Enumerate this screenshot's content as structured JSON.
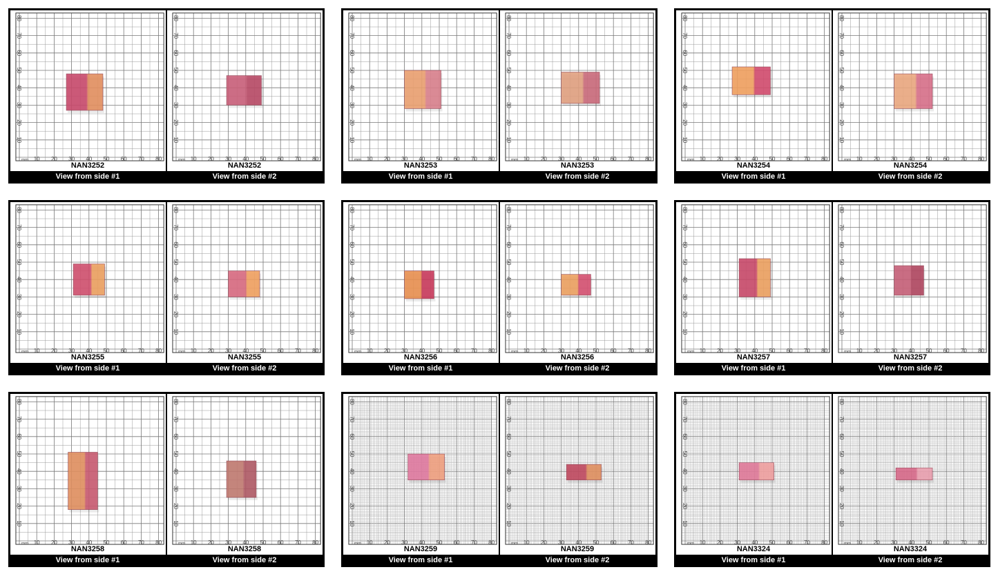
{
  "cards": [
    {
      "panels": [
        {
          "label": "NAN3252",
          "caption": "View from side #1"
        },
        {
          "label": "NAN3252",
          "caption": "View from side #2"
        }
      ]
    },
    {
      "panels": [
        {
          "label": "NAN3253",
          "caption": "View from side #1"
        },
        {
          "label": "NAN3253",
          "caption": "View from side #2"
        }
      ]
    },
    {
      "panels": [
        {
          "label": "NAN3254",
          "caption": "View from side #1"
        },
        {
          "label": "NAN3254",
          "caption": "View from side #2"
        }
      ]
    },
    {
      "panels": [
        {
          "label": "NAN3255",
          "caption": "View from side #1"
        },
        {
          "label": "NAN3255",
          "caption": "View from side #2"
        }
      ]
    },
    {
      "panels": [
        {
          "label": "NAN3256",
          "caption": "View from side #1"
        },
        {
          "label": "NAN3256",
          "caption": "View from side #2"
        }
      ]
    },
    {
      "panels": [
        {
          "label": "NAN3257",
          "caption": "View from side #1"
        },
        {
          "label": "NAN3257",
          "caption": "View from side #2"
        }
      ]
    },
    {
      "panels": [
        {
          "label": "NAN3258",
          "caption": "View from side #1"
        },
        {
          "label": "NAN3258",
          "caption": "View from side #2"
        }
      ]
    },
    {
      "panels": [
        {
          "label": "NAN3259",
          "caption": "View from side #1"
        },
        {
          "label": "NAN3259",
          "caption": "View from side #2"
        }
      ]
    },
    {
      "panels": [
        {
          "label": "NAN3324",
          "caption": "View from side #1"
        },
        {
          "label": "NAN3324",
          "caption": "View from side #2"
        }
      ]
    }
  ],
  "scale": {
    "unit": "mm",
    "ticks": [
      10,
      20,
      30,
      40,
      50,
      60,
      70,
      80
    ]
  }
}
